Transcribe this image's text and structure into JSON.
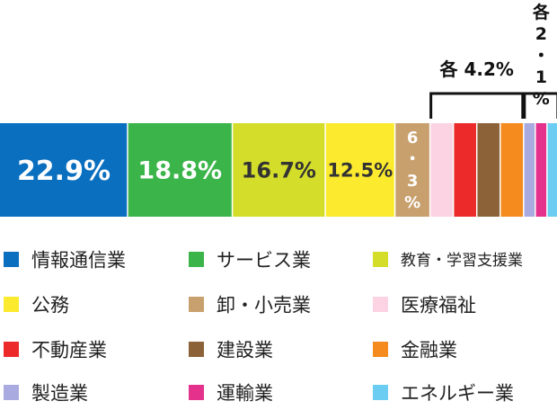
{
  "chart_data": {
    "type": "bar",
    "orientation": "horizontal-stacked",
    "total": 100,
    "unit": "%",
    "segments": [
      {
        "name": "情報通信業",
        "value": 22.9,
        "label": "22.9%",
        "color": "#0a6fbf",
        "label_color": "#ffffff"
      },
      {
        "name": "サービス業",
        "value": 18.8,
        "label": "18.8%",
        "color": "#3bb54a",
        "label_color": "#ffffff"
      },
      {
        "name": "教育・学習支援業",
        "value": 16.7,
        "label": "16.7%",
        "color": "#d4dd2a",
        "label_color": "#333333"
      },
      {
        "name": "公務",
        "value": 12.5,
        "label": "12.5%",
        "color": "#fcea2e",
        "label_color": "#333333"
      },
      {
        "name": "卸・小売業",
        "value": 6.3,
        "label": "6・3%",
        "color": "#c8a06e",
        "label_color": "#ffffff"
      },
      {
        "name": "医療福祉",
        "value": 4.2,
        "label": "",
        "color": "#fcd3e3",
        "label_color": ""
      },
      {
        "name": "不動産業",
        "value": 4.2,
        "label": "",
        "color": "#ec2a2a",
        "label_color": ""
      },
      {
        "name": "建設業",
        "value": 4.2,
        "label": "",
        "color": "#8c6239",
        "label_color": ""
      },
      {
        "name": "金融業",
        "value": 4.2,
        "label": "",
        "color": "#f58b1f",
        "label_color": ""
      },
      {
        "name": "製造業",
        "value": 2.1,
        "label": "",
        "color": "#a9abe0",
        "label_color": ""
      },
      {
        "name": "運輸業",
        "value": 2.1,
        "label": "",
        "color": "#e3318c",
        "label_color": ""
      },
      {
        "name": "エネルギー業",
        "value": 2.1,
        "label": "",
        "color": "#6ccdf2",
        "label_color": ""
      }
    ],
    "annotations": [
      {
        "text": "各 4.2%",
        "from": 5,
        "to": 8
      },
      {
        "text": "各2・1%",
        "from": 9,
        "to": 11
      }
    ],
    "legend": {
      "placement": "bottom",
      "columns": 3
    },
    "grid": false
  }
}
